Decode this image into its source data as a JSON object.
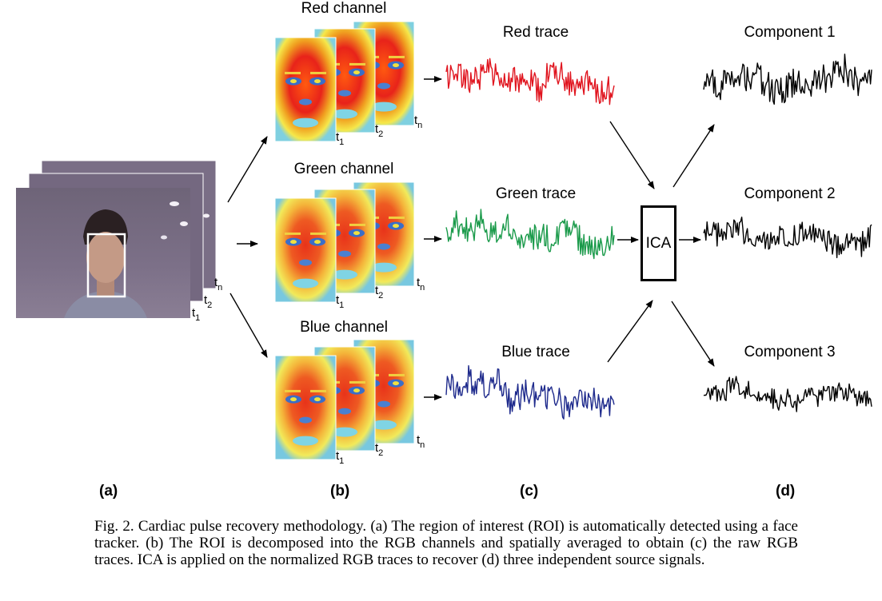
{
  "channels": [
    {
      "title": "Red channel",
      "trace_label": "Red trace",
      "color": "#e0141e"
    },
    {
      "title": "Green channel",
      "trace_label": "Green trace",
      "color": "#1a9a4a"
    },
    {
      "title": "Blue channel",
      "trace_label": "Blue trace",
      "color": "#1e2a8c"
    }
  ],
  "components": [
    "Component 1",
    "Component 2",
    "Component 3"
  ],
  "ica_label": "ICA",
  "frame_labels": {
    "t": "t",
    "s1": "1",
    "s2": "2",
    "sn": "n"
  },
  "panels": [
    "(a)",
    "(b)",
    "(c)",
    "(d)"
  ],
  "caption": "Fig. 2. Cardiac pulse recovery methodology. (a) The region of interest (ROI) is automatically detected using a face tracker. (b) The ROI is decomposed into the RGB channels and spatially averaged to obtain (c) the raw RGB traces. ICA is applied on the normalized RGB traces to recover (d) three independent source signals."
}
